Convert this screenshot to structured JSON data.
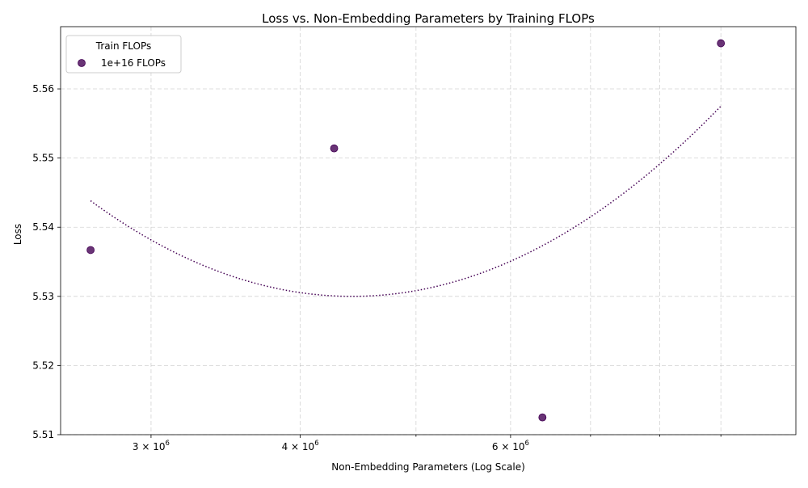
{
  "chart_data": {
    "type": "scatter",
    "title": "Loss vs. Non-Embedding Parameters by Training FLOPs",
    "xlabel": "Non-Embedding Parameters (Log Scale)",
    "ylabel": "Loss",
    "x_scale": "log",
    "xlim": [
      2520000,
      10400000
    ],
    "ylim": [
      5.51,
      5.569
    ],
    "x_major_ticks": [
      {
        "value": 3000000,
        "base": "3 × 10",
        "exp": "6"
      },
      {
        "value": 4000000,
        "base": "4 × 10",
        "exp": "6"
      },
      {
        "value": 6000000,
        "base": "6 × 10",
        "exp": "6"
      }
    ],
    "x_minor_ticks": [
      5000000,
      7000000,
      8000000,
      9000000
    ],
    "y_ticks": [
      "5.51",
      "5.52",
      "5.53",
      "5.54",
      "5.55",
      "5.56"
    ],
    "grid": true,
    "legend": {
      "title": "Train FLOPs",
      "placement": "upper-left",
      "entries": [
        "1e+16 FLOPs"
      ]
    },
    "series": [
      {
        "name": "1e+16 FLOPs",
        "color": "#440154",
        "points": [
          {
            "x": 2670000,
            "y": 5.5367
          },
          {
            "x": 4270000,
            "y": 5.5514
          },
          {
            "x": 6380000,
            "y": 5.5125
          },
          {
            "x": 9000000,
            "y": 5.5666
          }
        ],
        "fit": {
          "style": "dotted",
          "x_range": [
            2670000,
            9000000
          ],
          "vertex_x": 4420000,
          "vertex_y": 5.53,
          "end_y": 5.5575
        }
      }
    ]
  }
}
